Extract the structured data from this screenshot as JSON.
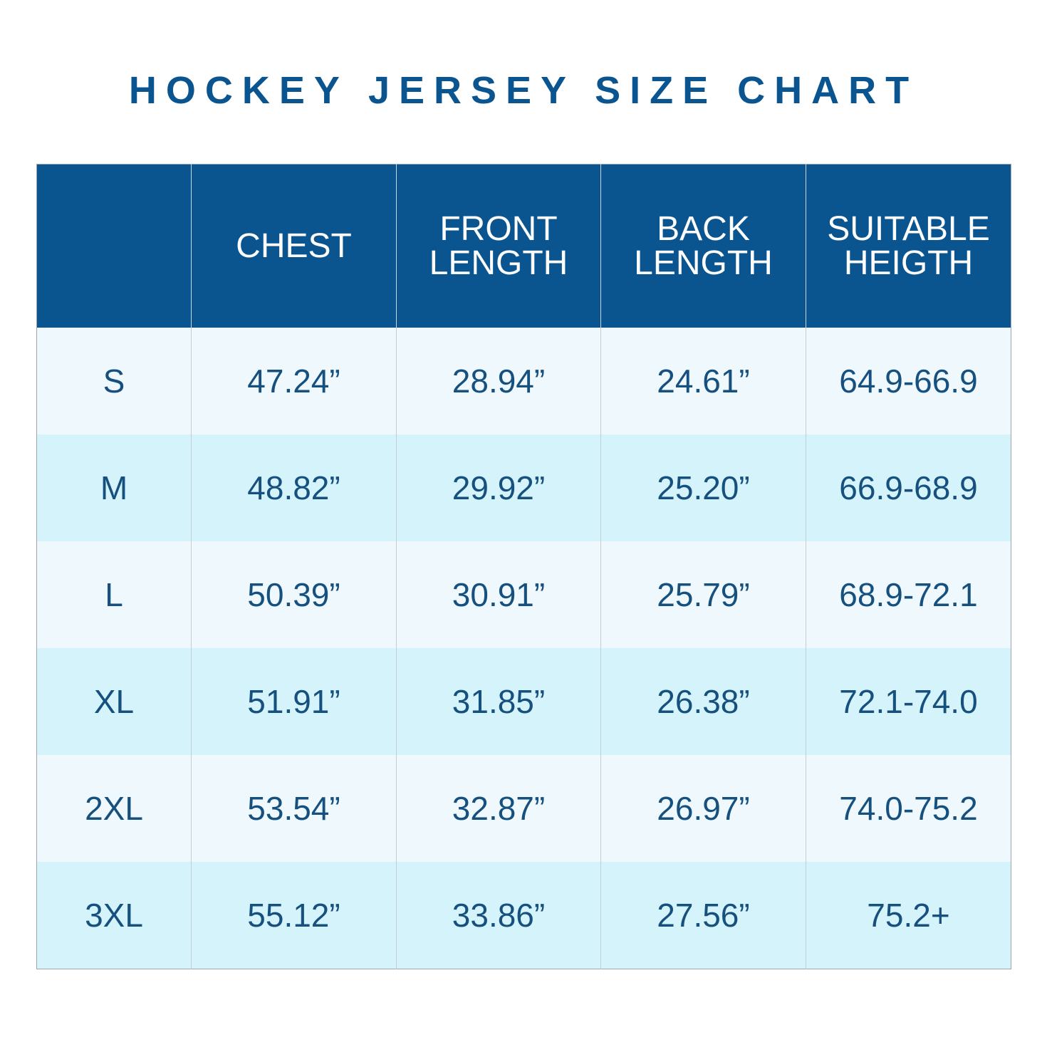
{
  "title": "HOCKEY JERSEY SIZE CHART",
  "colors": {
    "header_bg": "#0a5590",
    "title_text": "#0a5590",
    "cell_text": "#16507f",
    "row_light": "#eef8fd",
    "row_dark": "#d5f3fa"
  },
  "table": {
    "headers": [
      {
        "lines": [
          ""
        ]
      },
      {
        "lines": [
          "CHEST"
        ]
      },
      {
        "lines": [
          "FRONT",
          "LENGTH"
        ]
      },
      {
        "lines": [
          "BACK",
          "LENGTH"
        ]
      },
      {
        "lines": [
          "SUITABLE",
          "HEIGTH"
        ]
      }
    ],
    "rows": [
      [
        "S",
        "47.24”",
        "28.94”",
        "24.61”",
        "64.9-66.9"
      ],
      [
        "M",
        "48.82”",
        "29.92”",
        "25.20”",
        "66.9-68.9"
      ],
      [
        "L",
        "50.39”",
        "30.91”",
        "25.79”",
        "68.9-72.1"
      ],
      [
        "XL",
        "51.91”",
        "31.85”",
        "26.38”",
        "72.1-74.0"
      ],
      [
        "2XL",
        "53.54”",
        "32.87”",
        "26.97”",
        "74.0-75.2"
      ],
      [
        "3XL",
        "55.12”",
        "33.86”",
        "27.56”",
        "75.2+"
      ]
    ]
  }
}
